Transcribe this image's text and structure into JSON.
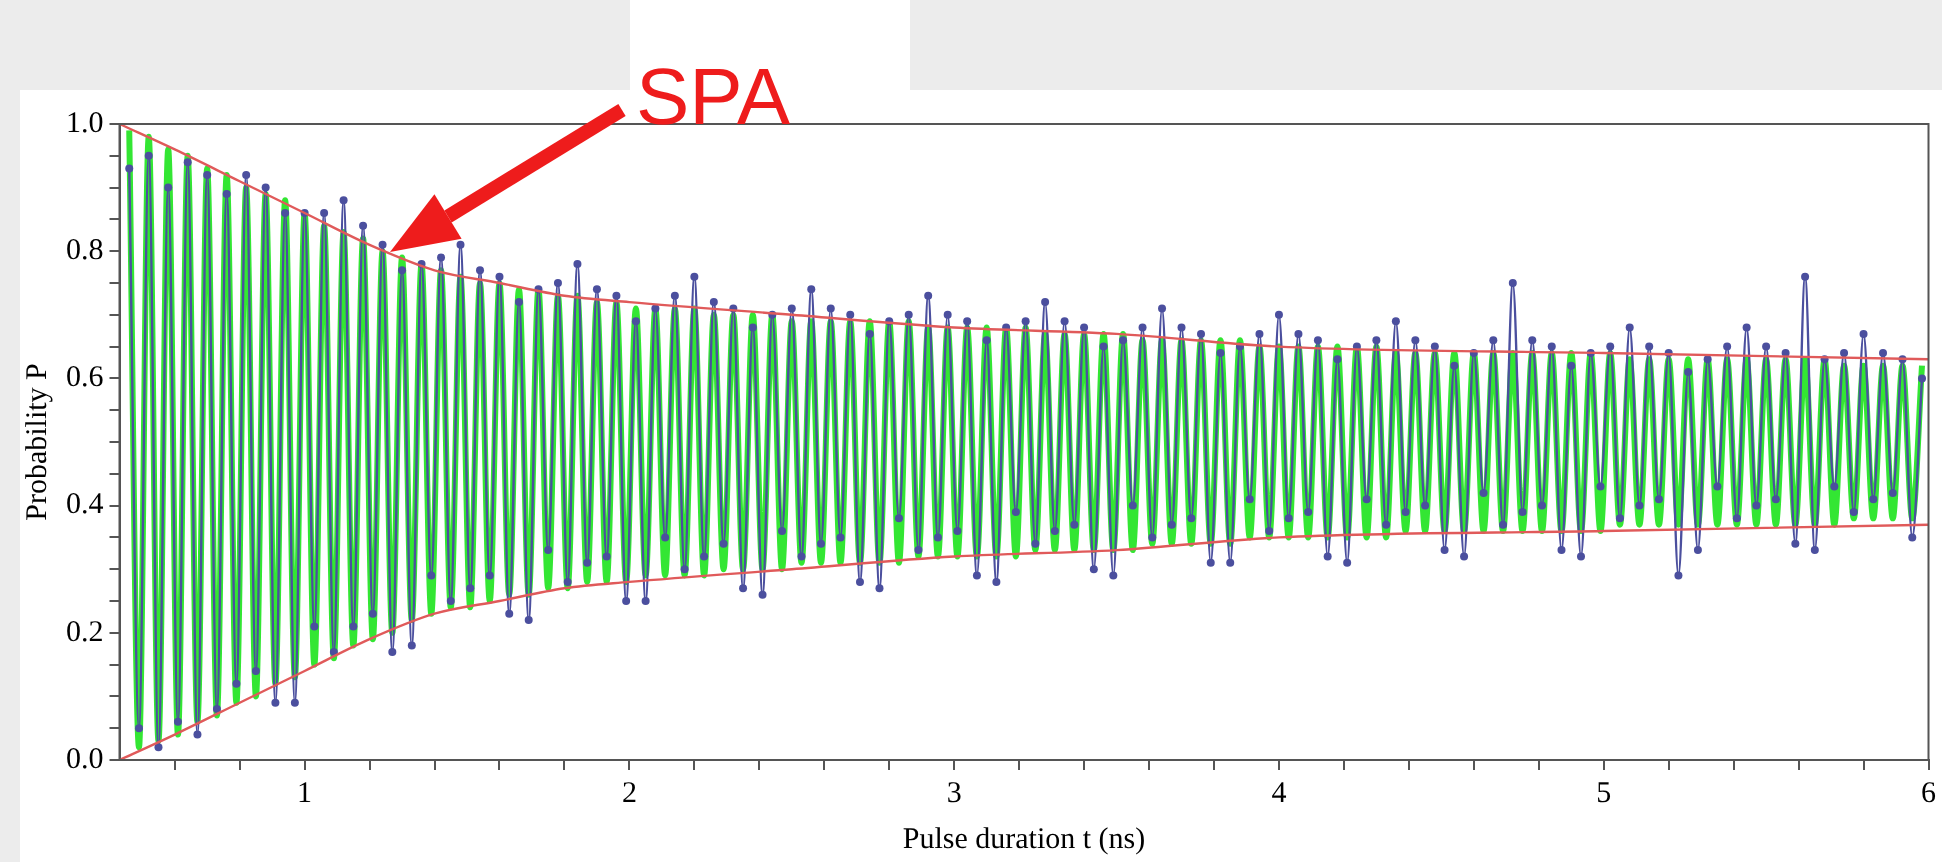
{
  "chart_data": {
    "type": "line",
    "xlabel": "Pulse duration t (ns)",
    "ylabel": "Probability P",
    "xlim": [
      0.43,
      6
    ],
    "ylim": [
      0,
      1
    ],
    "xticks": [
      {
        "value": 0.6,
        "label": null
      },
      {
        "value": 0.8,
        "label": null
      },
      1,
      {
        "value": 1.2,
        "label": null
      },
      {
        "value": 1.4,
        "label": null
      },
      {
        "value": 1.6,
        "label": null
      },
      {
        "value": 1.8,
        "label": null
      },
      2,
      {
        "value": 2.2,
        "label": null
      },
      {
        "value": 2.4,
        "label": null
      },
      {
        "value": 2.6,
        "label": null
      },
      {
        "value": 2.8,
        "label": null
      },
      3,
      {
        "value": 3.2,
        "label": null
      },
      {
        "value": 3.4,
        "label": null
      },
      {
        "value": 3.6,
        "label": null
      },
      {
        "value": 3.8,
        "label": null
      },
      4,
      {
        "value": 4.2,
        "label": null
      },
      {
        "value": 4.4,
        "label": null
      },
      {
        "value": 4.6,
        "label": null
      },
      {
        "value": 4.8,
        "label": null
      },
      5,
      {
        "value": 5.2,
        "label": null
      },
      {
        "value": 5.4,
        "label": null
      },
      {
        "value": 5.6,
        "label": null
      },
      {
        "value": 5.8,
        "label": null
      },
      6
    ],
    "yticks": [
      {
        "value": 0,
        "label": "0.0"
      },
      {
        "value": 0.05,
        "label": null
      },
      {
        "value": 0.1,
        "label": null
      },
      {
        "value": 0.15,
        "label": null
      },
      {
        "value": 0.2,
        "label": "0.2"
      },
      {
        "value": 0.25,
        "label": null
      },
      {
        "value": 0.3,
        "label": null
      },
      {
        "value": 0.35,
        "label": null
      },
      {
        "value": 0.4,
        "label": "0.4"
      },
      {
        "value": 0.45,
        "label": null
      },
      {
        "value": 0.5,
        "label": null
      },
      {
        "value": 0.55,
        "label": null
      },
      {
        "value": 0.6,
        "label": "0.6"
      },
      {
        "value": 0.65,
        "label": null
      },
      {
        "value": 0.7,
        "label": null
      },
      {
        "value": 0.75,
        "label": null
      },
      {
        "value": 0.8,
        "label": "0.8"
      },
      {
        "value": 0.85,
        "label": null
      },
      {
        "value": 0.9,
        "label": null
      },
      {
        "value": 0.95,
        "label": null
      },
      {
        "value": 1,
        "label": "1.0"
      }
    ],
    "grid": false,
    "legend": false,
    "line_style": "solid",
    "annotations": [
      "SPA"
    ],
    "x": [
      0.46,
      0.49,
      0.52,
      0.55,
      0.58,
      0.61,
      0.64,
      0.67,
      0.7,
      0.73,
      0.76,
      0.79,
      0.82,
      0.85,
      0.88,
      0.91,
      0.94,
      0.97,
      1.0,
      1.03,
      1.06,
      1.09,
      1.12,
      1.15,
      1.18,
      1.21,
      1.24,
      1.27,
      1.3,
      1.33,
      1.36,
      1.39,
      1.42,
      1.45,
      1.48,
      1.51,
      1.54,
      1.57,
      1.6,
      1.63,
      1.66,
      1.69,
      1.72,
      1.75,
      1.78,
      1.81,
      1.84,
      1.87,
      1.9,
      1.93,
      1.96,
      1.99,
      2.02,
      2.05,
      2.08,
      2.11,
      2.14,
      2.17,
      2.2,
      2.23,
      2.26,
      2.29,
      2.32,
      2.35,
      2.38,
      2.41,
      2.44,
      2.47,
      2.5,
      2.53,
      2.56,
      2.59,
      2.62,
      2.65,
      2.68,
      2.71,
      2.74,
      2.77,
      2.8,
      2.83,
      2.86,
      2.89,
      2.92,
      2.95,
      2.98,
      3.01,
      3.04,
      3.07,
      3.1,
      3.13,
      3.16,
      3.19,
      3.22,
      3.25,
      3.28,
      3.31,
      3.34,
      3.37,
      3.4,
      3.43,
      3.46,
      3.49,
      3.52,
      3.55,
      3.58,
      3.61,
      3.64,
      3.67,
      3.7,
      3.73,
      3.76,
      3.79,
      3.82,
      3.85,
      3.88,
      3.91,
      3.94,
      3.97,
      4.0,
      4.03,
      4.06,
      4.09,
      4.12,
      4.15,
      4.18,
      4.21,
      4.24,
      4.27,
      4.3,
      4.33,
      4.36,
      4.39,
      4.42,
      4.45,
      4.48,
      4.51,
      4.54,
      4.57,
      4.6,
      4.63,
      4.66,
      4.69,
      4.72,
      4.75,
      4.78,
      4.81,
      4.84,
      4.87,
      4.9,
      4.93,
      4.96,
      4.99,
      5.02,
      5.05,
      5.08,
      5.11,
      5.14,
      5.17,
      5.2,
      5.23,
      5.26,
      5.29,
      5.32,
      5.35,
      5.38,
      5.41,
      5.44,
      5.47,
      5.5,
      5.53,
      5.56,
      5.59,
      5.62,
      5.65,
      5.68,
      5.71,
      5.74,
      5.77,
      5.8,
      5.83,
      5.86,
      5.89,
      5.92,
      5.95,
      5.98
    ],
    "series": [
      {
        "color": "#33e633",
        "marker": "none",
        "values": [
          0.99,
          0.02,
          0.98,
          0.03,
          0.96,
          0.04,
          0.95,
          0.06,
          0.93,
          0.07,
          0.92,
          0.09,
          0.9,
          0.1,
          0.89,
          0.12,
          0.88,
          0.13,
          0.86,
          0.15,
          0.84,
          0.16,
          0.83,
          0.18,
          0.82,
          0.19,
          0.8,
          0.2,
          0.79,
          0.22,
          0.78,
          0.23,
          0.77,
          0.24,
          0.76,
          0.24,
          0.75,
          0.25,
          0.75,
          0.26,
          0.74,
          0.26,
          0.74,
          0.27,
          0.73,
          0.27,
          0.73,
          0.28,
          0.72,
          0.28,
          0.72,
          0.28,
          0.71,
          0.29,
          0.71,
          0.29,
          0.71,
          0.29,
          0.71,
          0.29,
          0.7,
          0.3,
          0.7,
          0.3,
          0.7,
          0.3,
          0.7,
          0.3,
          0.69,
          0.31,
          0.69,
          0.31,
          0.69,
          0.31,
          0.69,
          0.31,
          0.69,
          0.31,
          0.69,
          0.31,
          0.69,
          0.32,
          0.68,
          0.32,
          0.68,
          0.32,
          0.68,
          0.32,
          0.68,
          0.32,
          0.68,
          0.32,
          0.68,
          0.33,
          0.67,
          0.33,
          0.67,
          0.33,
          0.67,
          0.33,
          0.67,
          0.33,
          0.67,
          0.33,
          0.66,
          0.34,
          0.66,
          0.34,
          0.66,
          0.34,
          0.66,
          0.34,
          0.66,
          0.34,
          0.66,
          0.35,
          0.65,
          0.35,
          0.65,
          0.35,
          0.65,
          0.35,
          0.65,
          0.35,
          0.65,
          0.35,
          0.65,
          0.35,
          0.65,
          0.35,
          0.64,
          0.36,
          0.64,
          0.36,
          0.64,
          0.36,
          0.64,
          0.36,
          0.64,
          0.36,
          0.64,
          0.36,
          0.64,
          0.36,
          0.64,
          0.36,
          0.64,
          0.36,
          0.64,
          0.36,
          0.64,
          0.36,
          0.64,
          0.37,
          0.63,
          0.37,
          0.63,
          0.37,
          0.63,
          0.37,
          0.63,
          0.37,
          0.63,
          0.37,
          0.63,
          0.37,
          0.63,
          0.37,
          0.63,
          0.37,
          0.63,
          0.37,
          0.63,
          0.37,
          0.63,
          0.37,
          0.62,
          0.38,
          0.62,
          0.38,
          0.62,
          0.38,
          0.62,
          0.38,
          0.62
        ]
      },
      {
        "color": "#4b4f9e",
        "marker": "circle",
        "values": [
          0.93,
          0.05,
          0.95,
          0.02,
          0.9,
          0.06,
          0.94,
          0.04,
          0.92,
          0.08,
          0.89,
          0.12,
          0.92,
          0.14,
          0.9,
          0.09,
          0.86,
          0.09,
          0.86,
          0.21,
          0.86,
          0.17,
          0.88,
          0.21,
          0.84,
          0.23,
          0.81,
          0.17,
          0.77,
          0.18,
          0.78,
          0.29,
          0.79,
          0.25,
          0.81,
          0.27,
          0.77,
          0.29,
          0.76,
          0.23,
          0.72,
          0.22,
          0.74,
          0.33,
          0.75,
          0.28,
          0.78,
          0.31,
          0.74,
          0.32,
          0.73,
          0.25,
          0.69,
          0.25,
          0.71,
          0.35,
          0.73,
          0.3,
          0.76,
          0.32,
          0.72,
          0.34,
          0.71,
          0.27,
          0.68,
          0.26,
          0.7,
          0.36,
          0.71,
          0.32,
          0.74,
          0.34,
          0.71,
          0.35,
          0.7,
          0.28,
          0.67,
          0.27,
          0.69,
          0.38,
          0.7,
          0.33,
          0.73,
          0.35,
          0.7,
          0.36,
          0.69,
          0.29,
          0.66,
          0.28,
          0.68,
          0.39,
          0.69,
          0.34,
          0.72,
          0.36,
          0.69,
          0.37,
          0.68,
          0.3,
          0.65,
          0.29,
          0.66,
          0.4,
          0.68,
          0.35,
          0.71,
          0.37,
          0.68,
          0.38,
          0.67,
          0.31,
          0.64,
          0.31,
          0.65,
          0.41,
          0.67,
          0.36,
          0.7,
          0.38,
          0.67,
          0.39,
          0.66,
          0.32,
          0.63,
          0.31,
          0.65,
          0.41,
          0.66,
          0.37,
          0.69,
          0.39,
          0.66,
          0.4,
          0.65,
          0.33,
          0.62,
          0.32,
          0.64,
          0.42,
          0.66,
          0.37,
          0.75,
          0.39,
          0.66,
          0.4,
          0.65,
          0.33,
          0.62,
          0.32,
          0.64,
          0.43,
          0.65,
          0.38,
          0.68,
          0.4,
          0.65,
          0.41,
          0.64,
          0.29,
          0.61,
          0.33,
          0.63,
          0.43,
          0.65,
          0.38,
          0.68,
          0.4,
          0.65,
          0.41,
          0.64,
          0.34,
          0.76,
          0.33,
          0.63,
          0.43,
          0.64,
          0.39,
          0.67,
          0.41,
          0.64,
          0.42,
          0.63,
          0.35,
          0.6
        ]
      },
      {
        "color": "#e05a5a",
        "marker": "none",
        "x": [
          0.43,
          0.6,
          0.8,
          1,
          1.2,
          1.4,
          1.6,
          1.8,
          2,
          2.5,
          3,
          3.5,
          4,
          5,
          6
        ],
        "values": [
          1,
          0.96,
          0.91,
          0.86,
          0.81,
          0.77,
          0.75,
          0.73,
          0.72,
          0.7,
          0.68,
          0.67,
          0.65,
          0.64,
          0.63
        ]
      },
      {
        "color": "#e05a5a",
        "marker": "none",
        "x": [
          0.43,
          0.6,
          0.8,
          1,
          1.2,
          1.4,
          1.6,
          1.8,
          2,
          2.5,
          3,
          3.5,
          4,
          5,
          6
        ],
        "values": [
          0,
          0.04,
          0.09,
          0.14,
          0.19,
          0.23,
          0.25,
          0.27,
          0.28,
          0.3,
          0.32,
          0.33,
          0.35,
          0.36,
          0.37
        ]
      }
    ]
  }
}
